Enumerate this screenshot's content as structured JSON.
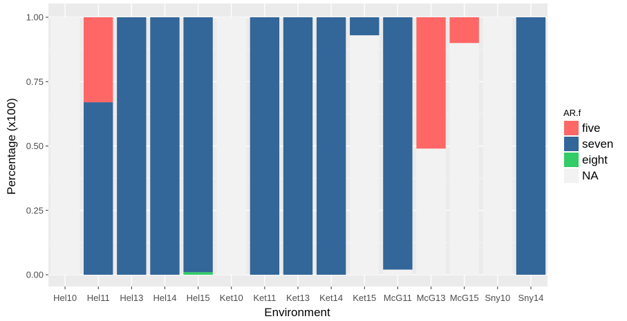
{
  "chart_data": {
    "type": "bar",
    "stacked": true,
    "xlabel": "Environment",
    "ylabel": "Percentage (x100)",
    "ylim": [
      0,
      1
    ],
    "yticks": [
      "0.00",
      "0.25",
      "0.50",
      "0.75",
      "1.00"
    ],
    "grid": true,
    "legend_position": "right",
    "legend_title": "AR.f",
    "categories": [
      "Hel10",
      "Hel11",
      "Hel13",
      "Hel14",
      "Hel15",
      "Ket10",
      "Ket11",
      "Ket13",
      "Ket14",
      "Ket15",
      "McG11",
      "McG13",
      "McG15",
      "Sny10",
      "Sny14"
    ],
    "series": [
      {
        "name": "five",
        "color": "#ff6666",
        "values": [
          0,
          0.33,
          0,
          0,
          0,
          0,
          0,
          0,
          0,
          0,
          0,
          0.51,
          0.1,
          0,
          0
        ]
      },
      {
        "name": "seven",
        "color": "#336699",
        "values": [
          0,
          0.67,
          1,
          1,
          0.99,
          0,
          1,
          1,
          1,
          0.07,
          0.98,
          0,
          0,
          0,
          1
        ]
      },
      {
        "name": "eight",
        "color": "#33cc66",
        "values": [
          0,
          0,
          0,
          0,
          0.01,
          0,
          0,
          0,
          0,
          0,
          0,
          0,
          0,
          0,
          0
        ]
      },
      {
        "name": "NA",
        "color": "#f2f2f2",
        "values": [
          1,
          0,
          0,
          0,
          0,
          1,
          0,
          0,
          0,
          0.93,
          0.02,
          0.49,
          0.9,
          1,
          0
        ]
      }
    ]
  }
}
